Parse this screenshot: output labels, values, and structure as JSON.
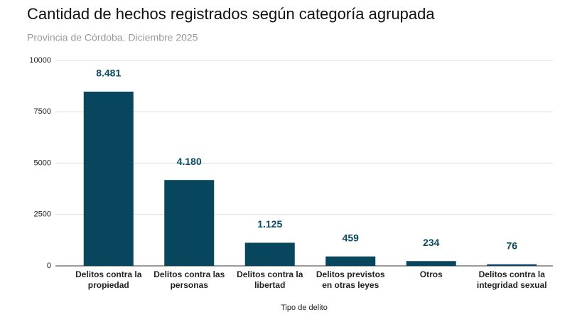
{
  "chart_data": {
    "type": "bar",
    "title": "Cantidad de hechos registrados según categoría agrupada",
    "subtitle": "Provincia de Córdoba. Diciembre 2025",
    "x_label": "Tipo de delito",
    "categories": [
      "Delitos contra la propiedad",
      "Delitos contra las personas",
      "Delitos contra la libertad",
      "Delitos previstos en otras leyes",
      "Otros",
      "Delitos contra la integridad sexual"
    ],
    "values": [
      8481,
      4180,
      1125,
      459,
      234,
      76
    ],
    "value_labels": [
      "8.481",
      "4.180",
      "1.125",
      "459",
      "234",
      "76"
    ],
    "color": "#08465e",
    "ylim": [
      0,
      10000
    ],
    "yticks": [
      0,
      2500,
      5000,
      7500,
      10000
    ],
    "grid": true
  }
}
